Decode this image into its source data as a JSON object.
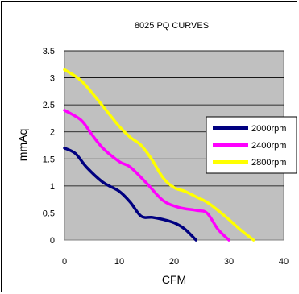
{
  "chart_data": {
    "type": "line",
    "title": "8025 PQ CURVES",
    "xlabel": "CFM",
    "ylabel": "mmAq",
    "xlim": [
      0,
      40
    ],
    "ylim": [
      0,
      3.5
    ],
    "x_ticks": [
      "0",
      "10",
      "20",
      "30",
      "40"
    ],
    "y_ticks": [
      "0",
      "0.5",
      "1",
      "1.5",
      "2",
      "2.5",
      "3",
      "3.5"
    ],
    "grid": true,
    "legend_position": "right",
    "plot_background": "#c0c0c0",
    "series": [
      {
        "name": "2000rpm",
        "color": "#000080",
        "points": [
          [
            0,
            1.7
          ],
          [
            2,
            1.6
          ],
          [
            4,
            1.35
          ],
          [
            7,
            1.07
          ],
          [
            10,
            0.9
          ],
          [
            12,
            0.7
          ],
          [
            14,
            0.44
          ],
          [
            16,
            0.42
          ],
          [
            18,
            0.38
          ],
          [
            20,
            0.32
          ],
          [
            22,
            0.2
          ],
          [
            24,
            0.0
          ]
        ]
      },
      {
        "name": "2400rpm",
        "color": "#ff00ff",
        "points": [
          [
            0,
            2.4
          ],
          [
            3,
            2.22
          ],
          [
            5,
            1.95
          ],
          [
            7,
            1.7
          ],
          [
            10,
            1.45
          ],
          [
            12,
            1.35
          ],
          [
            15,
            1.05
          ],
          [
            18,
            0.73
          ],
          [
            21,
            0.6
          ],
          [
            24,
            0.55
          ],
          [
            26,
            0.5
          ],
          [
            28,
            0.2
          ],
          [
            30,
            0.0
          ]
        ]
      },
      {
        "name": "2800rpm",
        "color": "#ffff00",
        "points": [
          [
            0,
            3.15
          ],
          [
            3,
            2.95
          ],
          [
            6,
            2.6
          ],
          [
            8,
            2.35
          ],
          [
            10,
            2.1
          ],
          [
            12,
            1.9
          ],
          [
            14,
            1.75
          ],
          [
            16,
            1.48
          ],
          [
            18,
            1.15
          ],
          [
            20,
            0.97
          ],
          [
            22,
            0.9
          ],
          [
            24,
            0.8
          ],
          [
            26,
            0.7
          ],
          [
            28,
            0.55
          ],
          [
            30,
            0.38
          ],
          [
            32,
            0.2
          ],
          [
            34.5,
            0.0
          ]
        ]
      }
    ]
  }
}
